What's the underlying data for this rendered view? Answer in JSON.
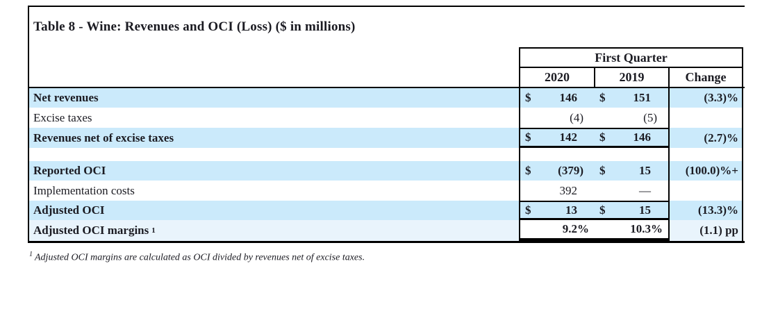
{
  "title": "Table 8 - Wine: Revenues and OCI (Loss) ($ in millions)",
  "header": {
    "group_label": "First Quarter",
    "col_2020": "2020",
    "col_2019": "2019",
    "col_change": "Change"
  },
  "rows": [
    {
      "label": "Net revenues",
      "d2020": "$",
      "v2020": "146",
      "d2019": "$",
      "v2019": "151",
      "change": "(3.3)%"
    },
    {
      "label": "Excise taxes",
      "v2020": "(4)",
      "v2019": "(5)",
      "change": ""
    },
    {
      "label": "Revenues net of excise taxes",
      "d2020": "$",
      "v2020": "142",
      "d2019": "$",
      "v2019": "146",
      "change": "(2.7)%"
    },
    {
      "label": "Reported OCI",
      "d2020": "$",
      "v2020": "(379)",
      "d2019": "$",
      "v2019": "15",
      "change": "(100.0)%+"
    },
    {
      "label": "Implementation costs",
      "v2020": "392",
      "v2019": "—",
      "change": ""
    },
    {
      "label": "Adjusted OCI",
      "d2020": "$",
      "v2020": "13",
      "d2019": "$",
      "v2019": "15",
      "change": "(13.3)%"
    },
    {
      "label": "Adjusted OCI margins",
      "footnote_ref": "1",
      "v2020": "9.2%",
      "v2019": "10.3%",
      "change": "(1.1) pp"
    }
  ],
  "footnote": {
    "ref": "1",
    "text": "Adjusted OCI margins are calculated as OCI divided by revenues net of excise taxes."
  },
  "colors": {
    "row_highlight": "#cbeafb",
    "row_soft": "#e9f4fc",
    "border": "#000000",
    "text": "#1b1b22"
  }
}
